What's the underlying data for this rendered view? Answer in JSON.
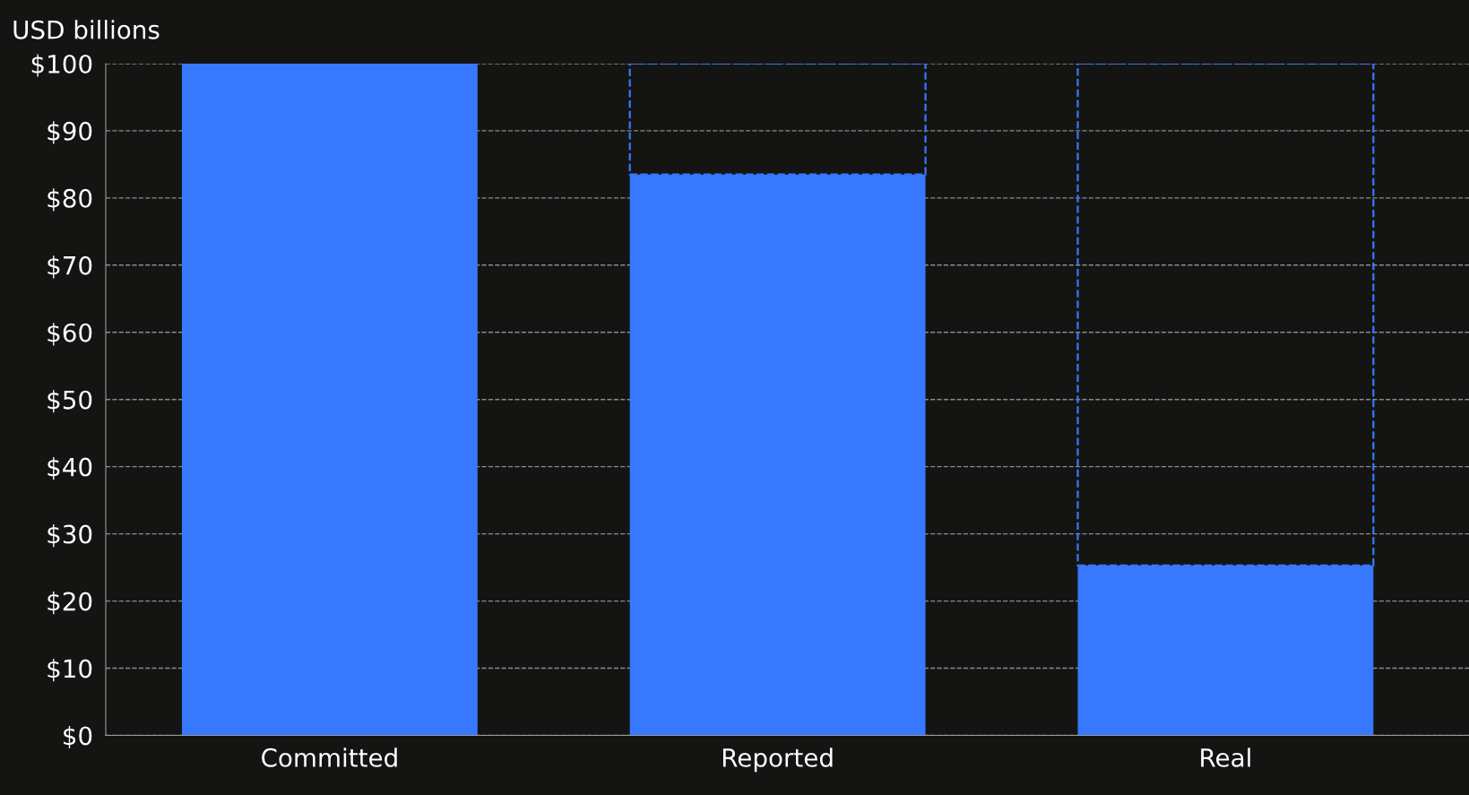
{
  "chart_data": {
    "type": "bar",
    "ylabel": "USD billions",
    "categories": [
      "Committed",
      "Reported",
      "Real"
    ],
    "stacked": true,
    "series": [
      {
        "color": "#3778ff",
        "values": [
          100,
          83.5,
          25.3
        ]
      },
      {
        "color": "#3778ff",
        "values": [
          null,
          16.5,
          74.7
        ],
        "line_style": "dashed"
      }
    ],
    "ylim": [
      0,
      100
    ],
    "yticks": [
      {
        "value": 0,
        "label": "$0"
      },
      {
        "value": 10,
        "label": "$10"
      },
      {
        "value": 20,
        "label": "$20"
      },
      {
        "value": 30,
        "label": "$30"
      },
      {
        "value": 40,
        "label": "$40"
      },
      {
        "value": 50,
        "label": "$50"
      },
      {
        "value": 60,
        "label": "$60"
      },
      {
        "value": 70,
        "label": "$70"
      },
      {
        "value": 80,
        "label": "$80"
      },
      {
        "value": 90,
        "label": "$90"
      },
      {
        "value": 100,
        "label": "$100"
      }
    ],
    "grid": "y"
  }
}
